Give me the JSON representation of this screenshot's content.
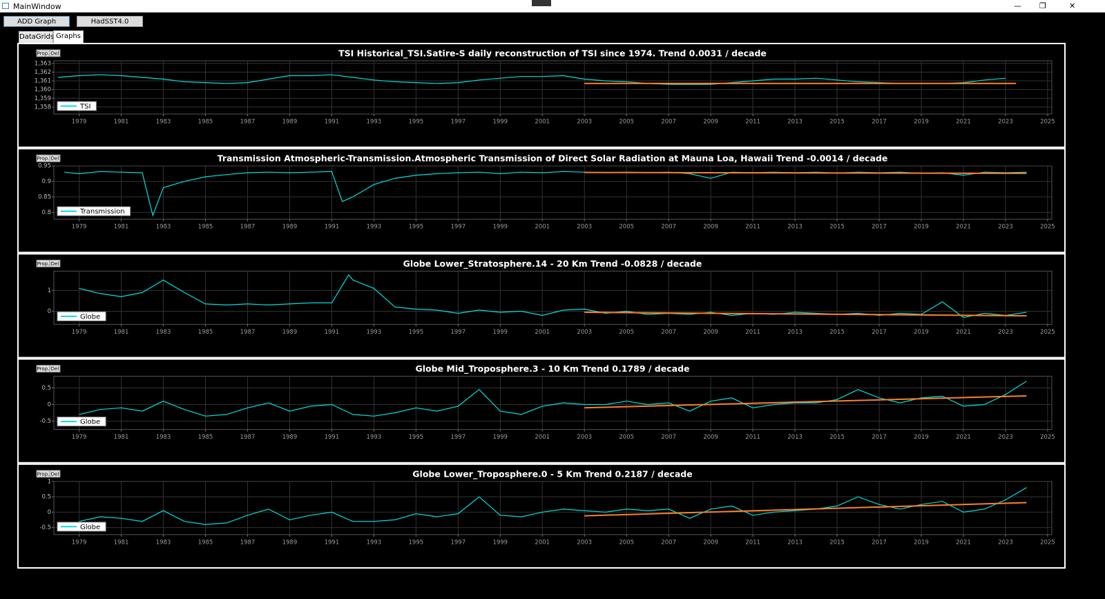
{
  "window": {
    "title": "MainWindow",
    "buttons": [
      "ADD Graph",
      "HadSST4.0"
    ],
    "tabs": [
      "DataGrids",
      "Graphs"
    ]
  },
  "chart_data": [
    {
      "type": "line",
      "title": "TSI Historical_TSI.Satire-S daily reconstruction of TSI since 1974. Trend 0.0031 / decade",
      "controls": [
        "Prop.",
        "Del"
      ],
      "x": [
        1978,
        1979,
        1980,
        1981,
        1982,
        1983,
        1984,
        1985,
        1986,
        1987,
        1988,
        1989,
        1990,
        1991,
        1992,
        1993,
        1994,
        1995,
        1996,
        1997,
        1998,
        1999,
        2000,
        2001,
        2002,
        2003,
        2004,
        2005,
        2006,
        2007,
        2008,
        2009,
        2010,
        2011,
        2012,
        2013,
        2014,
        2015,
        2016,
        2017,
        2018,
        2019,
        2020,
        2021,
        2022,
        2023
      ],
      "series": [
        {
          "name": "TSI",
          "color": "#00e0e0",
          "values": [
            1361.4,
            1361.6,
            1361.7,
            1361.6,
            1361.4,
            1361.2,
            1360.9,
            1360.8,
            1360.7,
            1360.8,
            1361.2,
            1361.6,
            1361.6,
            1361.7,
            1361.4,
            1361.1,
            1360.9,
            1360.8,
            1360.7,
            1360.8,
            1361.1,
            1361.3,
            1361.5,
            1361.5,
            1361.6,
            1361.2,
            1361.0,
            1360.9,
            1360.7,
            1360.6,
            1360.6,
            1360.6,
            1360.8,
            1361.0,
            1361.2,
            1361.2,
            1361.3,
            1361.1,
            1360.9,
            1360.8,
            1360.7,
            1360.7,
            1360.7,
            1360.8,
            1361.1,
            1361.3
          ]
        }
      ],
      "trend": {
        "color": "#ff7f27",
        "x": [
          2003,
          2023.5
        ],
        "values": [
          1360.7,
          1360.71
        ]
      },
      "xlim": [
        1977.8,
        2025.2
      ],
      "xticks": [
        1979,
        1981,
        1983,
        1985,
        1987,
        1989,
        1991,
        1993,
        1995,
        1997,
        1999,
        2001,
        2003,
        2005,
        2007,
        2009,
        2011,
        2013,
        2015,
        2017,
        2019,
        2021,
        2023,
        2025
      ],
      "ylim": [
        1357.2,
        1363.3
      ],
      "yticks": [
        {
          "value": 1358,
          "label": "1,358"
        },
        {
          "value": 1359,
          "label": "1,359"
        },
        {
          "value": 1360,
          "label": "1,360"
        },
        {
          "value": 1361,
          "label": "1,361"
        },
        {
          "value": 1362,
          "label": "1,362"
        },
        {
          "value": 1363,
          "label": "1,363"
        }
      ],
      "grid": true,
      "legend": "lower left"
    },
    {
      "type": "line",
      "title": "Transmission Atmospheric-Transmission.Atmospheric Transmission of Direct Solar Radiation at Mauna Loa, Hawaii Trend -0.0014 / decade",
      "controls": [
        "Prop.",
        "Del"
      ],
      "x": [
        1978.3,
        1979,
        1980,
        1981,
        1982,
        1982.5,
        1983,
        1984,
        1985,
        1986,
        1987,
        1988,
        1989,
        1990,
        1991,
        1991.5,
        1992,
        1993,
        1994,
        1995,
        1996,
        1997,
        1998,
        1999,
        2000,
        2001,
        2002,
        2003,
        2004,
        2005,
        2006,
        2007,
        2008,
        2009,
        2010,
        2011,
        2012,
        2013,
        2014,
        2015,
        2016,
        2017,
        2018,
        2019,
        2020,
        2021,
        2022,
        2023,
        2024
      ],
      "series": [
        {
          "name": "Transmission",
          "color": "#00e0e0",
          "values": [
            0.93,
            0.925,
            0.932,
            0.93,
            0.928,
            0.79,
            0.88,
            0.9,
            0.915,
            0.922,
            0.928,
            0.93,
            0.928,
            0.93,
            0.932,
            0.835,
            0.85,
            0.89,
            0.91,
            0.92,
            0.925,
            0.928,
            0.93,
            0.925,
            0.93,
            0.928,
            0.932,
            0.93,
            0.928,
            0.93,
            0.928,
            0.93,
            0.925,
            0.91,
            0.93,
            0.928,
            0.93,
            0.928,
            0.93,
            0.927,
            0.93,
            0.928,
            0.93,
            0.926,
            0.928,
            0.92,
            0.93,
            0.928,
            0.93
          ]
        }
      ],
      "trend": {
        "color": "#ff7f27",
        "x": [
          2003,
          2024
        ],
        "values": [
          0.929,
          0.926
        ]
      },
      "xlim": [
        1977.8,
        2025.2
      ],
      "xticks": [
        1979,
        1981,
        1983,
        1985,
        1987,
        1989,
        1991,
        1993,
        1995,
        1997,
        1999,
        2001,
        2003,
        2005,
        2007,
        2009,
        2011,
        2013,
        2015,
        2017,
        2019,
        2021,
        2023,
        2025
      ],
      "ylim": [
        0.778,
        0.95
      ],
      "yticks": [
        0.8,
        0.85,
        0.9,
        0.95
      ],
      "grid": true,
      "legend": "lower left"
    },
    {
      "type": "line",
      "title": "Globe Lower_Stratosphere.14 - 20 Km Trend -0.0828 / decade",
      "controls": [
        "Prop.",
        "Del"
      ],
      "x": [
        1979,
        1980,
        1981,
        1982,
        1983,
        1984,
        1985,
        1986,
        1987,
        1988,
        1989,
        1990,
        1991,
        1991.8,
        1992,
        1993,
        1994,
        1995,
        1996,
        1997,
        1998,
        1999,
        2000,
        2001,
        2002,
        2003,
        2004,
        2005,
        2006,
        2007,
        2008,
        2009,
        2010,
        2011,
        2012,
        2013,
        2014,
        2015,
        2016,
        2017,
        2018,
        2019,
        2020,
        2021,
        2022,
        2023,
        2024
      ],
      "series": [
        {
          "name": "Globe",
          "color": "#00e0e0",
          "values": [
            1.1,
            0.85,
            0.7,
            0.9,
            1.5,
            0.9,
            0.35,
            0.3,
            0.35,
            0.3,
            0.35,
            0.4,
            0.4,
            1.75,
            1.5,
            1.1,
            0.2,
            0.1,
            0.05,
            -0.1,
            0.05,
            -0.05,
            0.0,
            -0.2,
            0.05,
            0.1,
            -0.1,
            0.0,
            -0.15,
            -0.1,
            -0.15,
            -0.05,
            -0.2,
            -0.1,
            -0.15,
            -0.05,
            -0.1,
            -0.15,
            -0.1,
            -0.2,
            -0.1,
            -0.15,
            0.45,
            -0.3,
            -0.1,
            -0.2,
            -0.05
          ]
        }
      ],
      "trend": {
        "color": "#ff7f27",
        "x": [
          2003,
          2024
        ],
        "values": [
          -0.05,
          -0.22
        ]
      },
      "xlim": [
        1977.8,
        2025.2
      ],
      "xticks": [
        1979,
        1981,
        1983,
        1985,
        1987,
        1989,
        1991,
        1993,
        1995,
        1997,
        1999,
        2001,
        2003,
        2005,
        2007,
        2009,
        2011,
        2013,
        2015,
        2017,
        2019,
        2021,
        2023,
        2025
      ],
      "ylim": [
        -0.63,
        1.93
      ],
      "yticks": [
        0,
        1
      ],
      "grid": true,
      "legend": "lower left"
    },
    {
      "type": "line",
      "title": "Globe Mid_Troposphere.3 - 10 Km Trend 0.1789 / decade",
      "controls": [
        "Prop.",
        "Del"
      ],
      "x": [
        1979,
        1980,
        1981,
        1982,
        1983,
        1984,
        1985,
        1986,
        1987,
        1988,
        1989,
        1990,
        1991,
        1992,
        1993,
        1994,
        1995,
        1996,
        1997,
        1998,
        1999,
        2000,
        2001,
        2002,
        2003,
        2004,
        2005,
        2006,
        2007,
        2008,
        2009,
        2010,
        2011,
        2012,
        2013,
        2014,
        2015,
        2016,
        2017,
        2018,
        2019,
        2020,
        2021,
        2022,
        2023,
        2024
      ],
      "series": [
        {
          "name": "Globe",
          "color": "#00e0e0",
          "values": [
            -0.3,
            -0.15,
            -0.1,
            -0.2,
            0.1,
            -0.15,
            -0.35,
            -0.3,
            -0.1,
            0.05,
            -0.2,
            -0.05,
            0.0,
            -0.3,
            -0.35,
            -0.25,
            -0.1,
            -0.2,
            -0.05,
            0.45,
            -0.2,
            -0.3,
            -0.05,
            0.05,
            0.0,
            0.0,
            0.1,
            0.0,
            0.05,
            -0.2,
            0.1,
            0.2,
            -0.1,
            0.0,
            0.05,
            0.05,
            0.15,
            0.45,
            0.2,
            0.05,
            0.2,
            0.25,
            -0.05,
            0.0,
            0.3,
            0.7
          ]
        }
      ],
      "trend": {
        "color": "#ff7f27",
        "x": [
          2003,
          2024
        ],
        "values": [
          -0.1,
          0.26
        ]
      },
      "xlim": [
        1977.8,
        2025.2
      ],
      "xticks": [
        1979,
        1981,
        1983,
        1985,
        1987,
        1989,
        1991,
        1993,
        1995,
        1997,
        1999,
        2001,
        2003,
        2005,
        2007,
        2009,
        2011,
        2013,
        2015,
        2017,
        2019,
        2021,
        2023,
        2025
      ],
      "ylim": [
        -0.75,
        0.85
      ],
      "yticks": [
        -0.5,
        0,
        0.5
      ],
      "grid": true,
      "legend": "lower left"
    },
    {
      "type": "line",
      "title": "Globe Lower_Troposphere.0 - 5 Km Trend 0.2187 / decade",
      "controls": [
        "Prop.",
        "Del"
      ],
      "x": [
        1979,
        1980,
        1981,
        1982,
        1983,
        1984,
        1985,
        1986,
        1987,
        1988,
        1989,
        1990,
        1991,
        1992,
        1993,
        1994,
        1995,
        1996,
        1997,
        1998,
        1999,
        2000,
        2001,
        2002,
        2003,
        2004,
        2005,
        2006,
        2007,
        2008,
        2009,
        2010,
        2011,
        2012,
        2013,
        2014,
        2015,
        2016,
        2017,
        2018,
        2019,
        2020,
        2021,
        2022,
        2023,
        2024
      ],
      "series": [
        {
          "name": "Globe",
          "color": "#00e0e0",
          "values": [
            -0.3,
            -0.15,
            -0.2,
            -0.3,
            0.05,
            -0.3,
            -0.4,
            -0.35,
            -0.1,
            0.1,
            -0.25,
            -0.1,
            0.0,
            -0.3,
            -0.3,
            -0.25,
            -0.05,
            -0.15,
            -0.05,
            0.5,
            -0.1,
            -0.15,
            0.0,
            0.1,
            0.05,
            0.0,
            0.1,
            0.05,
            0.1,
            -0.2,
            0.1,
            0.2,
            -0.1,
            0.0,
            0.05,
            0.1,
            0.2,
            0.5,
            0.25,
            0.1,
            0.25,
            0.35,
            0.0,
            0.1,
            0.4,
            0.8
          ]
        }
      ],
      "trend": {
        "color": "#ff7f27",
        "x": [
          2003,
          2024
        ],
        "values": [
          -0.12,
          0.31
        ]
      },
      "xlim": [
        1977.8,
        2025.2
      ],
      "xticks": [
        1979,
        1981,
        1983,
        1985,
        1987,
        1989,
        1991,
        1993,
        1995,
        1997,
        1999,
        2001,
        2003,
        2005,
        2007,
        2009,
        2011,
        2013,
        2015,
        2017,
        2019,
        2021,
        2023,
        2025
      ],
      "ylim": [
        -0.73,
        1.0
      ],
      "yticks": [
        -0.5,
        0,
        0.5,
        1
      ],
      "grid": true,
      "legend": "lower left"
    }
  ]
}
